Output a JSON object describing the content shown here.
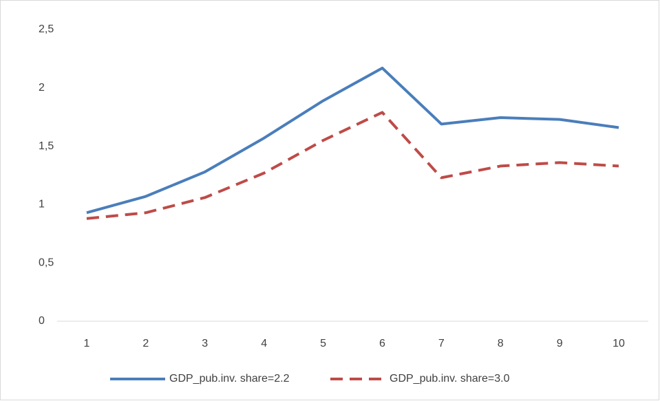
{
  "chart_data": {
    "type": "line",
    "categories": [
      "1",
      "2",
      "3",
      "4",
      "5",
      "6",
      "7",
      "8",
      "9",
      "10"
    ],
    "series": [
      {
        "name": "GDP_pub.inv. share=2.2",
        "color": "#4a7ebb",
        "dash": false,
        "values": [
          0.93,
          1.07,
          1.28,
          1.57,
          1.89,
          2.17,
          1.69,
          1.745,
          1.73,
          1.66
        ]
      },
      {
        "name": "GDP_pub.inv. share=3.0",
        "color": "#be4b48",
        "dash": true,
        "values": [
          0.88,
          0.93,
          1.06,
          1.27,
          1.55,
          1.79,
          1.23,
          1.33,
          1.36,
          1.33
        ]
      }
    ],
    "ylim": [
      0,
      2.5
    ],
    "yticks": [
      0,
      {
        "value": 0.5,
        "label": "0,5"
      },
      1,
      {
        "value": 1.5,
        "label": "1,5"
      },
      2,
      {
        "value": 2.5,
        "label": "2,5"
      }
    ],
    "grid": false,
    "legend": "bottom"
  }
}
